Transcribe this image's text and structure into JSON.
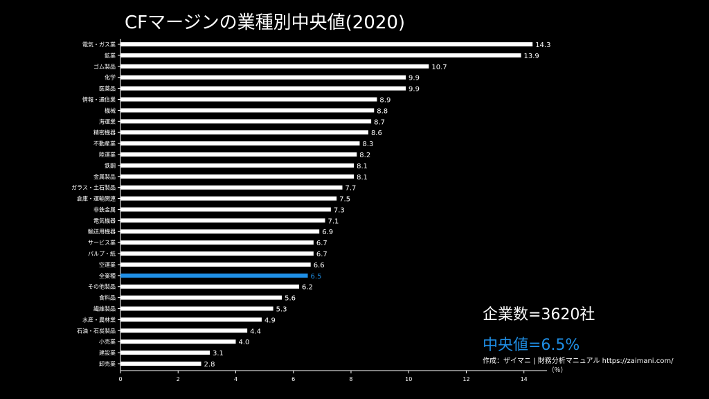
{
  "chart_data": {
    "type": "bar",
    "orientation": "horizontal",
    "title": "CFマージンの業種別中央値(2020)",
    "xlabel": "（％）",
    "ylabel": "",
    "xlim": [
      0,
      14.8
    ],
    "xticks": [
      0,
      2,
      4,
      6,
      8,
      10,
      12,
      14
    ],
    "categories": [
      "電気・ガス業",
      "鉱業",
      "ゴム製品",
      "化学",
      "医薬品",
      "情報・通信業",
      "機械",
      "海運業",
      "精密機器",
      "不動産業",
      "陸運業",
      "鉄鋼",
      "金属製品",
      "ガラス・土石製品",
      "倉庫・運輸関連",
      "非鉄金属",
      "電気機器",
      "輸送用機器",
      "サービス業",
      "パルプ・紙",
      "空運業",
      "全業種",
      "その他製品",
      "食料品",
      "繊維製品",
      "水産・農林業",
      "石油・石炭製品",
      "小売業",
      "建設業",
      "卸売業"
    ],
    "values": [
      14.3,
      13.9,
      10.7,
      9.9,
      9.9,
      8.9,
      8.8,
      8.7,
      8.6,
      8.3,
      8.2,
      8.1,
      8.1,
      7.7,
      7.5,
      7.3,
      7.1,
      6.9,
      6.7,
      6.7,
      6.6,
      6.5,
      6.2,
      5.6,
      5.3,
      4.9,
      4.4,
      4.0,
      3.1,
      2.8
    ],
    "value_labels": [
      "14.3",
      "13.9",
      "10.7",
      "9.9",
      "9.9",
      "8.9",
      "8.8",
      "8.7",
      "8.6",
      "8.3",
      "8.2",
      "8.1",
      "8.1",
      "7.7",
      "7.5",
      "7.3",
      "7.1",
      "6.9",
      "6.7",
      "6.7",
      "6.6",
      "6.5",
      "6.2",
      "5.6",
      "5.3",
      "4.9",
      "4.4",
      "4.0",
      "3.1",
      "2.8"
    ],
    "highlight_category": "全業種",
    "bar_color": "#ffffff",
    "highlight_color": "#1f8fe6"
  },
  "stats": {
    "companies": "企業数=3620社",
    "median": "中央値=6.5%"
  },
  "credit": "作成：ザイマニ | 財務分析マニュアル https://zaimani.com/"
}
